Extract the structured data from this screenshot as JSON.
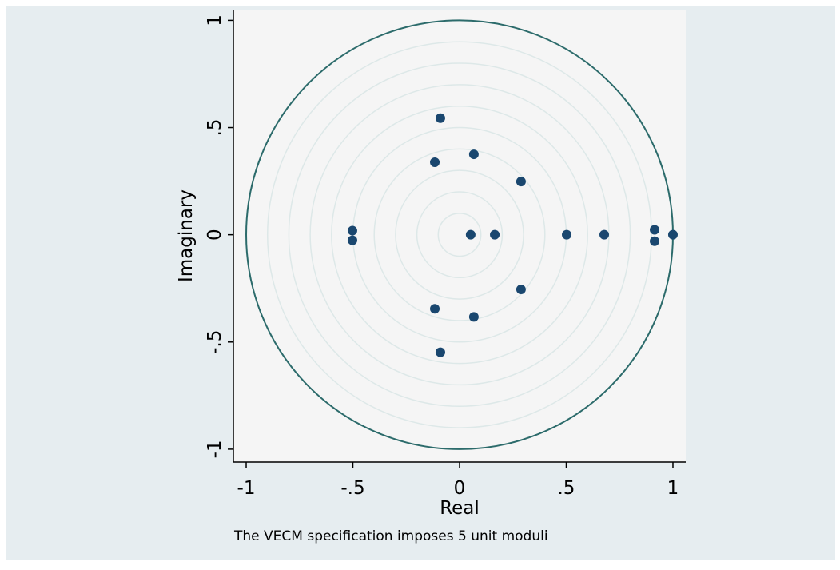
{
  "chart_data": {
    "type": "scatter",
    "x_label": "Real",
    "y_label": "Imaginary",
    "note": "The VECM specification imposes 5 unit moduli",
    "x": [
      -0.09,
      0.067,
      -0.116,
      0.288,
      -0.502,
      -0.502,
      0.052,
      0.165,
      0.502,
      0.678,
      0.914,
      0.914,
      1,
      0.288,
      -0.116,
      0.067,
      -0.09
    ],
    "values": [
      0.544,
      0.375,
      0.338,
      0.248,
      0.019,
      -0.026,
      0,
      0,
      0,
      0,
      0.023,
      -0.03,
      0,
      -0.255,
      -0.345,
      -0.383,
      -0.548
    ],
    "color": "#1a476f",
    "xlim": [
      -1.06,
      1.06
    ],
    "ylim": [
      -1.06,
      1.05
    ],
    "xticks": [
      -1,
      {
        "value": -0.5,
        "label": "-.5"
      },
      0,
      {
        "value": 0.5,
        "label": ".5"
      },
      1
    ],
    "yticks": [
      -1,
      {
        "value": -0.5,
        "label": "-.5"
      },
      0,
      {
        "value": 0.5,
        "label": ".5"
      },
      1
    ],
    "grid_circles": [
      0.1,
      0.2,
      0.3,
      0.4,
      0.5,
      0.6,
      0.7,
      0.8,
      0.9
    ],
    "grid_color": "#dde8e8",
    "unit_circle": 1,
    "unit_circle_color": "#2c6b6b"
  }
}
